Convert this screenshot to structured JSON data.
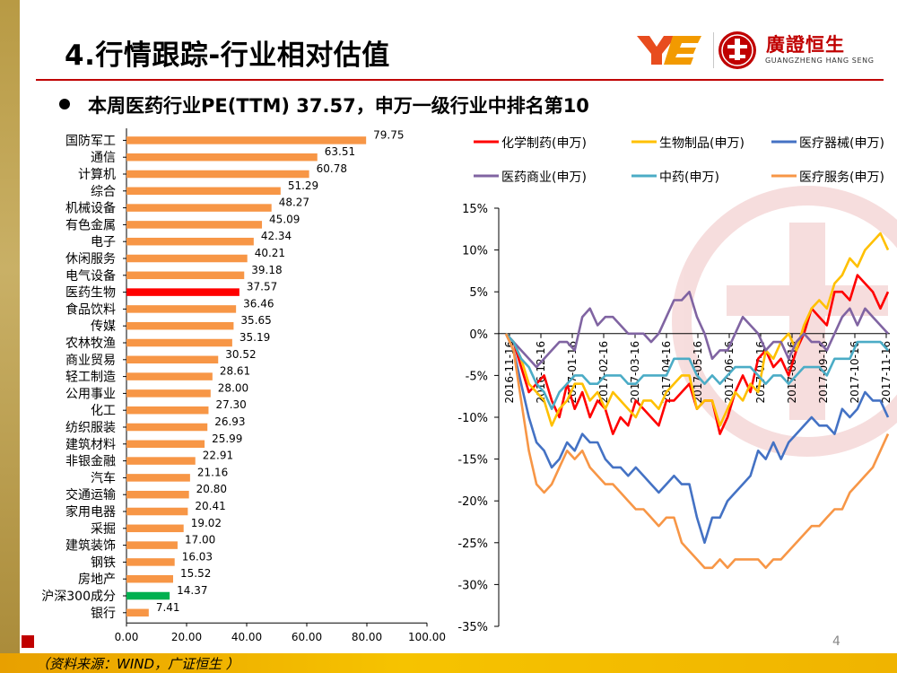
{
  "header": {
    "title": "4.行情跟踪-行业相对估值",
    "logo_cn": "廣證恒生",
    "logo_en": "GUANGZHENG HANG SENG"
  },
  "subtitle": "本周医药行业PE(TTM) 37.57，申万一级行业中排名第10",
  "footer": {
    "source": "（资料来源：WIND，广证恒生 ）",
    "page_number": "4"
  },
  "colors": {
    "accent": "#c00000",
    "bar_default": "#f79646",
    "bar_highlight": "#ff0000",
    "bar_index": "#00b050"
  },
  "chart_data": [
    {
      "type": "bar",
      "orientation": "horizontal",
      "categories": [
        "国防军工",
        "通信",
        "计算机",
        "综合",
        "机械设备",
        "有色金属",
        "电子",
        "休闲服务",
        "电气设备",
        "医药生物",
        "食品饮料",
        "传媒",
        "农林牧渔",
        "商业贸易",
        "轻工制造",
        "公用事业",
        "化工",
        "纺织服装",
        "建筑材料",
        "非银金融",
        "汽车",
        "交通运输",
        "家用电器",
        "采掘",
        "建筑装饰",
        "钢铁",
        "房地产",
        "沪深300成分",
        "银行"
      ],
      "values": [
        79.75,
        63.51,
        60.78,
        51.29,
        48.27,
        45.09,
        42.34,
        40.21,
        39.18,
        37.57,
        36.46,
        35.65,
        35.19,
        30.52,
        28.61,
        28.0,
        27.3,
        26.93,
        25.99,
        22.91,
        21.16,
        20.8,
        20.41,
        19.02,
        17.0,
        16.03,
        15.52,
        14.37,
        7.41
      ],
      "value_labels": [
        "79.75",
        "63.51",
        "60.78",
        "51.29",
        "48.27",
        "45.09",
        "42.34",
        "40.21",
        "39.18",
        "37.57",
        "36.46",
        "35.65",
        "35.19",
        "30.52",
        "28.61",
        "28.00",
        "27.30",
        "26.93",
        "25.99",
        "22.91",
        "21.16",
        "20.80",
        "20.41",
        "19.02",
        "17.00",
        "16.03",
        "15.52",
        "14.37",
        "7.41"
      ],
      "highlight": {
        "医药生物": "#ff0000",
        "沪深300成分": "#00b050"
      },
      "xlim": [
        0,
        100
      ],
      "xticks": [
        "0.00",
        "20.00",
        "40.00",
        "60.00",
        "80.00",
        "100.00"
      ]
    },
    {
      "type": "line",
      "ylim": [
        -35,
        15
      ],
      "yticks": [
        "15%",
        "10%",
        "5%",
        "0%",
        "-5%",
        "-10%",
        "-15%",
        "-20%",
        "-25%",
        "-30%",
        "-35%"
      ],
      "x_labels": [
        "2016-11-16",
        "2016-12-16",
        "2017-01-16",
        "2017-02-16",
        "2017-03-16",
        "2017-04-16",
        "2017-05-16",
        "2017-06-16",
        "2017-07-16",
        "2017-08-16",
        "2017-09-16",
        "2017-10-16",
        "2017-11-16"
      ],
      "legend": [
        [
          {
            "name": "化学制药(申万)",
            "color": "#ff0000"
          },
          {
            "name": "生物制品(申万)",
            "color": "#ffc000"
          },
          {
            "name": "医疗器械(申万)",
            "color": "#4472c4"
          }
        ],
        [
          {
            "name": "医药商业(申万)",
            "color": "#8064a2"
          },
          {
            "name": "中药(申万)",
            "color": "#4bacc6"
          },
          {
            "name": "医疗服务(申万)",
            "color": "#f79646"
          }
        ]
      ],
      "series": [
        {
          "name": "化学制药(申万)",
          "color": "#ff0000",
          "values": [
            0,
            -1,
            -4,
            -7,
            -6,
            -5,
            -8,
            -10,
            -6,
            -9,
            -7,
            -10,
            -8,
            -9,
            -12,
            -10,
            -11,
            -8,
            -9,
            -10,
            -11,
            -8,
            -8,
            -7,
            -6,
            -9,
            -8,
            -8,
            -12,
            -10,
            -7,
            -5,
            -7,
            -3,
            -2,
            -4,
            -3,
            -5,
            -2,
            0,
            3,
            2,
            1,
            5,
            5,
            4,
            7,
            6,
            5,
            3,
            5
          ]
        },
        {
          "name": "生物制品(申万)",
          "color": "#ffc000",
          "values": [
            0,
            -1,
            -3,
            -6,
            -7,
            -8,
            -11,
            -9,
            -8,
            -6,
            -6,
            -8,
            -7,
            -9,
            -7,
            -8,
            -9,
            -10,
            -8,
            -8,
            -9,
            -7,
            -6,
            -5,
            -5,
            -9,
            -8,
            -8,
            -11,
            -9,
            -7,
            -8,
            -6,
            -7,
            -2,
            -3,
            -1,
            0,
            -2,
            1,
            3,
            4,
            3,
            6,
            7,
            9,
            8,
            10,
            11,
            12,
            10
          ]
        },
        {
          "name": "医疗器械(申万)",
          "color": "#4472c4",
          "values": [
            0,
            -2,
            -6,
            -10,
            -13,
            -14,
            -16,
            -15,
            -13,
            -14,
            -12,
            -13,
            -13,
            -15,
            -16,
            -16,
            -17,
            -16,
            -17,
            -18,
            -19,
            -18,
            -17,
            -18,
            -18,
            -22,
            -25,
            -22,
            -22,
            -20,
            -19,
            -18,
            -17,
            -14,
            -15,
            -13,
            -15,
            -13,
            -12,
            -11,
            -10,
            -11,
            -11,
            -12,
            -9,
            -10,
            -9,
            -7,
            -8,
            -8,
            -10
          ]
        },
        {
          "name": "医药商业(申万)",
          "color": "#8064a2",
          "values": [
            0,
            -1,
            -2,
            -3,
            -4,
            -3,
            -2,
            -1,
            -1,
            -2,
            2,
            3,
            1,
            2,
            2,
            1,
            0,
            0,
            0,
            -1,
            0,
            2,
            4,
            4,
            5,
            2,
            0,
            -3,
            -2,
            -2,
            0,
            2,
            1,
            0,
            -2,
            -1,
            -1,
            -3,
            -1,
            0,
            -1,
            -1,
            -2,
            0,
            2,
            3,
            1,
            3,
            2,
            1,
            0
          ]
        },
        {
          "name": "中药(申万)",
          "color": "#4bacc6",
          "values": [
            0,
            -1,
            -3,
            -4,
            -6,
            -7,
            -9,
            -7,
            -6,
            -5,
            -5,
            -6,
            -6,
            -5,
            -5,
            -5,
            -6,
            -6,
            -5,
            -5,
            -5,
            -5,
            -3,
            -3,
            -3,
            -5,
            -6,
            -5,
            -6,
            -5,
            -4,
            -4,
            -4,
            -5,
            -6,
            -5,
            -5,
            -6,
            -5,
            -4,
            -4,
            -4,
            -5,
            -3,
            -3,
            -3,
            -1,
            -1,
            -1,
            -1,
            -2
          ]
        },
        {
          "name": "医疗服务(申万)",
          "color": "#f79646",
          "values": [
            0,
            -2,
            -8,
            -14,
            -18,
            -19,
            -18,
            -16,
            -14,
            -15,
            -14,
            -16,
            -17,
            -18,
            -18,
            -19,
            -20,
            -21,
            -21,
            -22,
            -23,
            -22,
            -22,
            -25,
            -26,
            -27,
            -28,
            -28,
            -27,
            -28,
            -27,
            -27,
            -27,
            -27,
            -28,
            -27,
            -27,
            -26,
            -25,
            -24,
            -23,
            -23,
            -22,
            -21,
            -21,
            -19,
            -18,
            -17,
            -16,
            -14,
            -12
          ]
        }
      ]
    }
  ]
}
